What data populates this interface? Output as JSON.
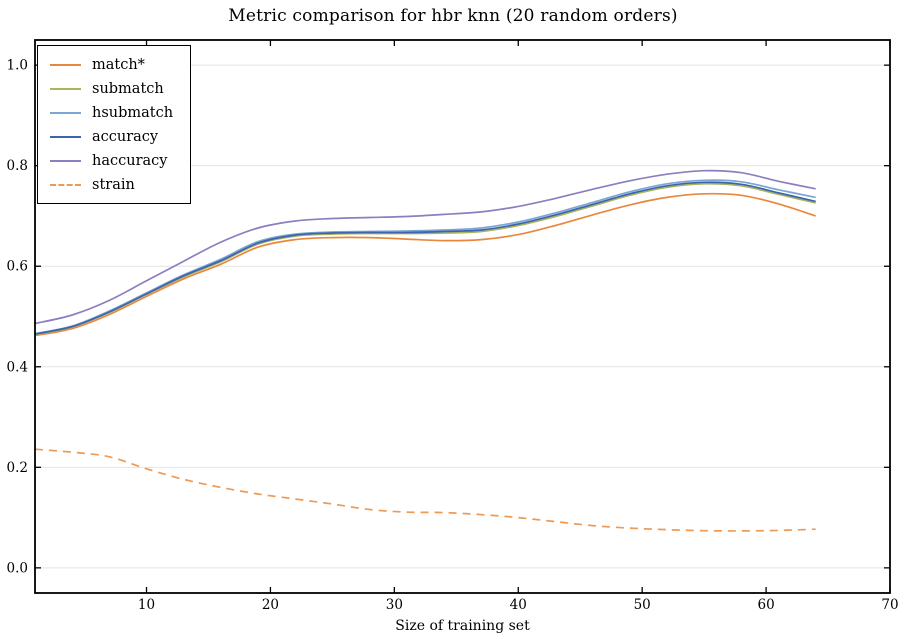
{
  "chart_data": {
    "type": "line",
    "title": "Metric comparison for hbr knn (20 random orders)",
    "xlabel": "Size of training set",
    "ylabel": "",
    "xlim": [
      1,
      70
    ],
    "ylim": [
      -0.05,
      1.05
    ],
    "xticks": [
      10,
      20,
      30,
      40,
      50,
      60,
      70
    ],
    "xtick_labels": [
      "10",
      "20",
      "30",
      "40",
      "50",
      "60",
      "70"
    ],
    "yticks": [
      0.0,
      0.2,
      0.4,
      0.6,
      0.8,
      1.0
    ],
    "ytick_labels": [
      "0.0",
      "0.2",
      "0.4",
      "0.6",
      "0.8",
      "1.0"
    ],
    "grid": "horizontal",
    "legend_position": "upper-left",
    "x": [
      1,
      4,
      7,
      10,
      13,
      16,
      19,
      22,
      25,
      28,
      31,
      34,
      37,
      40,
      43,
      46,
      49,
      52,
      55,
      58,
      61,
      64
    ],
    "series": [
      {
        "name": "match*",
        "color": "#e8883f",
        "style": "solid",
        "values": [
          0.462,
          0.476,
          0.504,
          0.54,
          0.575,
          0.604,
          0.638,
          0.653,
          0.657,
          0.657,
          0.654,
          0.651,
          0.653,
          0.663,
          0.681,
          0.702,
          0.722,
          0.737,
          0.744,
          0.741,
          0.724,
          0.7
        ]
      },
      {
        "name": "submatch",
        "color": "#a9b45b",
        "style": "solid",
        "values": [
          0.464,
          0.479,
          0.508,
          0.544,
          0.579,
          0.609,
          0.644,
          0.66,
          0.664,
          0.665,
          0.665,
          0.666,
          0.669,
          0.681,
          0.699,
          0.72,
          0.741,
          0.757,
          0.764,
          0.76,
          0.743,
          0.726
        ]
      },
      {
        "name": "hsubmatch",
        "color": "#7aa6d4",
        "style": "solid",
        "values": [
          0.466,
          0.481,
          0.511,
          0.547,
          0.583,
          0.614,
          0.649,
          0.664,
          0.668,
          0.669,
          0.67,
          0.672,
          0.676,
          0.688,
          0.706,
          0.727,
          0.748,
          0.764,
          0.771,
          0.768,
          0.752,
          0.737
        ]
      },
      {
        "name": "accuracy",
        "color": "#3c64b1",
        "style": "solid",
        "values": [
          0.465,
          0.48,
          0.509,
          0.545,
          0.581,
          0.611,
          0.646,
          0.662,
          0.666,
          0.667,
          0.667,
          0.669,
          0.672,
          0.684,
          0.702,
          0.723,
          0.744,
          0.76,
          0.767,
          0.763,
          0.746,
          0.729
        ]
      },
      {
        "name": "haccuracy",
        "color": "#8b7fc0",
        "style": "solid",
        "values": [
          0.486,
          0.503,
          0.532,
          0.571,
          0.61,
          0.648,
          0.676,
          0.69,
          0.695,
          0.697,
          0.699,
          0.703,
          0.708,
          0.719,
          0.735,
          0.753,
          0.77,
          0.783,
          0.79,
          0.786,
          0.769,
          0.754
        ]
      },
      {
        "name": "strain",
        "color": "#ee9a54",
        "style": "dashed",
        "values": [
          0.236,
          0.23,
          0.221,
          0.197,
          0.176,
          0.16,
          0.147,
          0.137,
          0.127,
          0.116,
          0.111,
          0.11,
          0.106,
          0.1,
          0.092,
          0.084,
          0.079,
          0.076,
          0.074,
          0.0735,
          0.0745,
          0.077
        ]
      }
    ],
    "colors": {
      "background": "#ffffff",
      "grid": "#e4e4e4",
      "spine": "#000000",
      "text": "#000000"
    }
  }
}
